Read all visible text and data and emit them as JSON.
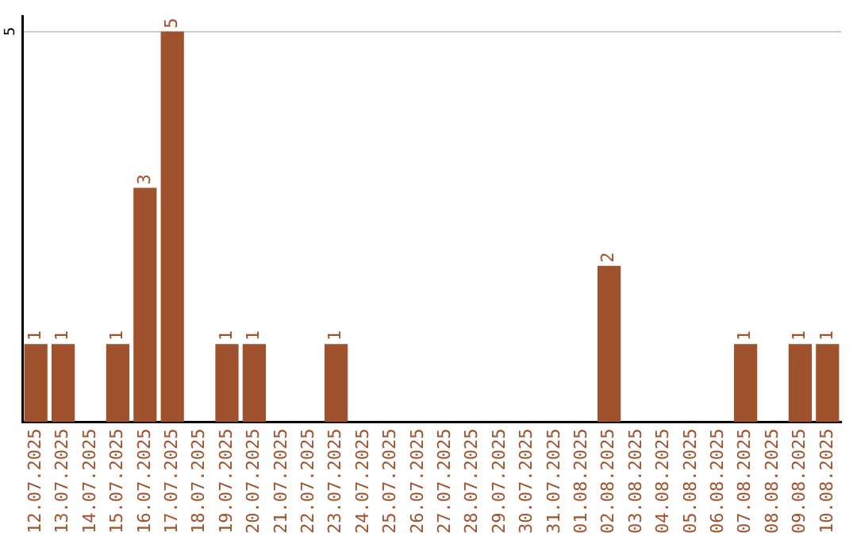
{
  "chart_data": {
    "type": "bar",
    "categories": [
      "12.07.2025",
      "13.07.2025",
      "14.07.2025",
      "15.07.2025",
      "16.07.2025",
      "17.07.2025",
      "18.07.2025",
      "19.07.2025",
      "20.07.2025",
      "21.07.2025",
      "22.07.2025",
      "23.07.2025",
      "24.07.2025",
      "25.07.2025",
      "26.07.2025",
      "27.07.2025",
      "28.07.2025",
      "29.07.2025",
      "30.07.2025",
      "31.07.2025",
      "01.08.2025",
      "02.08.2025",
      "03.08.2025",
      "04.08.2025",
      "05.08.2025",
      "06.08.2025",
      "07.08.2025",
      "08.08.2025",
      "09.08.2025",
      "10.08.2025"
    ],
    "values": [
      1,
      1,
      0,
      1,
      3,
      5,
      0,
      1,
      1,
      0,
      0,
      1,
      0,
      0,
      0,
      0,
      0,
      0,
      0,
      0,
      0,
      2,
      0,
      0,
      0,
      0,
      1,
      0,
      1,
      1
    ],
    "value_labels": [
      "1",
      "1",
      null,
      "1",
      "3",
      "5",
      null,
      "1",
      "1",
      null,
      null,
      "1",
      null,
      null,
      null,
      null,
      null,
      null,
      null,
      null,
      null,
      "2",
      null,
      null,
      null,
      null,
      "1",
      null,
      "1",
      "1"
    ],
    "color": "#a0522d",
    "ylim": [
      0,
      5.2
    ],
    "yticks": [
      5
    ],
    "grid": "y",
    "legend": false
  }
}
